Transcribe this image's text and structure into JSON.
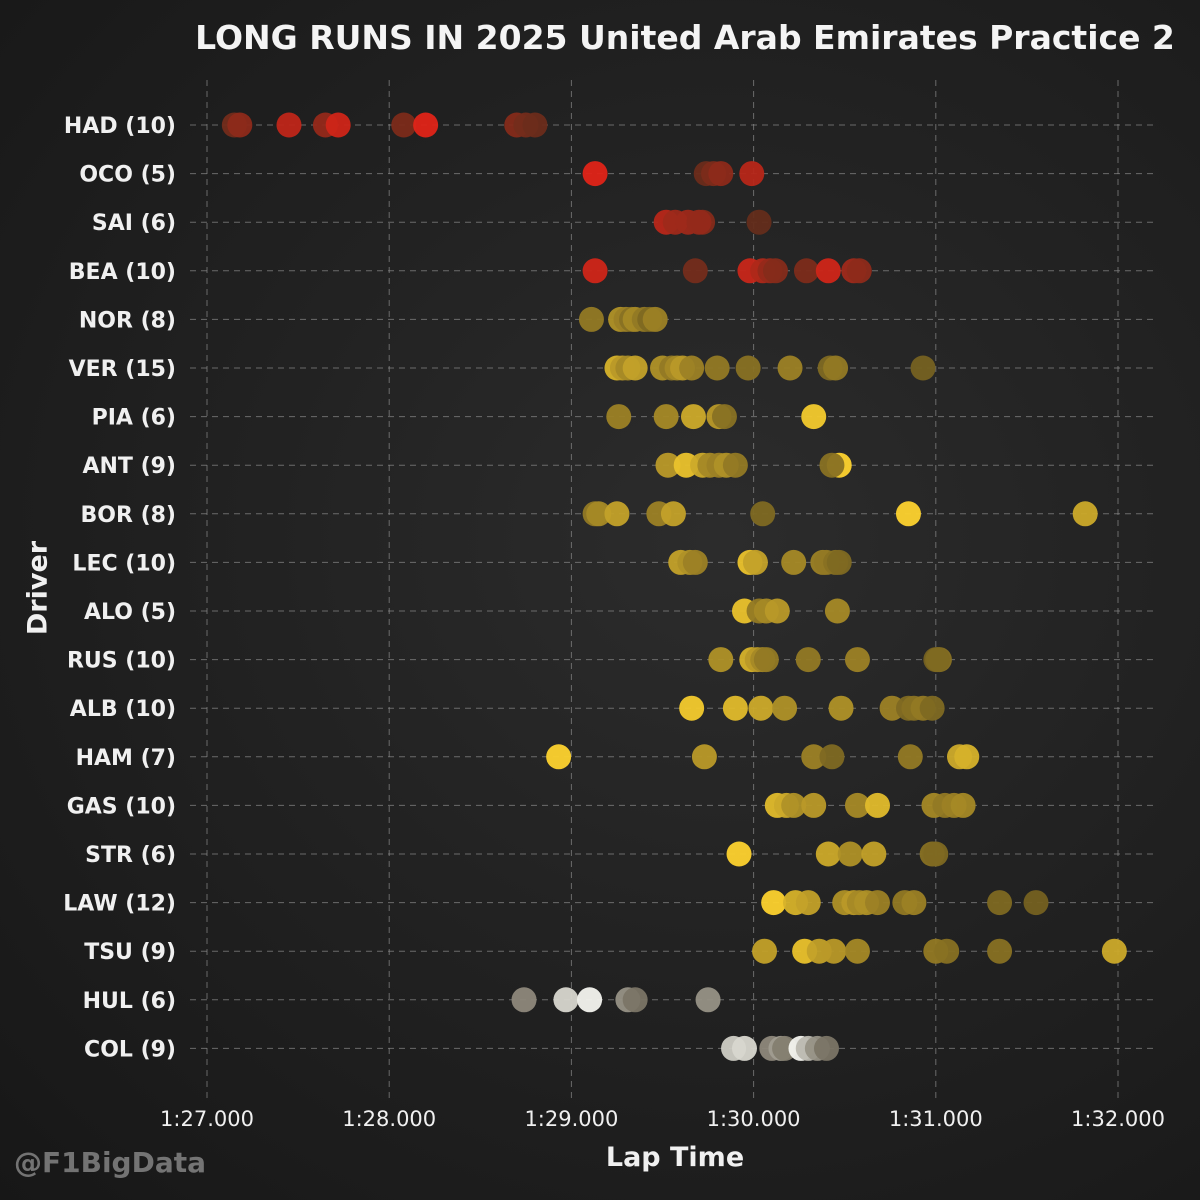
{
  "title": "LONG RUNS IN 2025 United Arab Emirates Practice 2",
  "watermark": "@F1BigData",
  "colors": {
    "red": "#e02418",
    "yellow": "#fdd22e",
    "white": "#f4f4ef"
  },
  "chart_data": {
    "type": "scatter",
    "title": "LONG RUNS IN 2025 United Arab Emirates Practice 2",
    "xlabel": "Lap Time",
    "ylabel": "Driver",
    "xlim": [
      86.85,
      92.2
    ],
    "x_ticks": [
      87,
      88,
      89,
      90,
      91,
      92
    ],
    "x_tick_labels": [
      "1:27.000",
      "1:28.000",
      "1:29.000",
      "1:30.000",
      "1:31.000",
      "1:32.000"
    ],
    "grid": true,
    "series": [
      {
        "label": "HAD (10)",
        "color": "#e02418",
        "laps": [
          {
            "t": 87.15,
            "s": 0.35
          },
          {
            "t": 87.18,
            "s": 0.5
          },
          {
            "t": 87.45,
            "s": 0.8
          },
          {
            "t": 87.65,
            "s": 0.55
          },
          {
            "t": 87.72,
            "s": 0.9
          },
          {
            "t": 88.08,
            "s": 0.4
          },
          {
            "t": 88.2,
            "s": 1.0
          },
          {
            "t": 88.7,
            "s": 0.45
          },
          {
            "t": 88.75,
            "s": 0.35
          },
          {
            "t": 88.8,
            "s": 0.3
          }
        ]
      },
      {
        "label": "OCO (5)",
        "color": "#e02418",
        "laps": [
          {
            "t": 89.13,
            "s": 1.0
          },
          {
            "t": 89.74,
            "s": 0.3
          },
          {
            "t": 89.78,
            "s": 0.4
          },
          {
            "t": 89.82,
            "s": 0.5
          },
          {
            "t": 89.99,
            "s": 0.75
          }
        ]
      },
      {
        "label": "SAI (6)",
        "color": "#e02418",
        "laps": [
          {
            "t": 89.52,
            "s": 0.75
          },
          {
            "t": 89.57,
            "s": 0.6
          },
          {
            "t": 89.64,
            "s": 0.6
          },
          {
            "t": 89.72,
            "s": 0.45
          },
          {
            "t": 89.7,
            "s": 0.55
          },
          {
            "t": 90.03,
            "s": 0.25
          }
        ]
      },
      {
        "label": "BEA (10)",
        "color": "#e02418",
        "laps": [
          {
            "t": 89.13,
            "s": 0.9
          },
          {
            "t": 89.68,
            "s": 0.35
          },
          {
            "t": 89.98,
            "s": 0.85
          },
          {
            "t": 90.05,
            "s": 0.7
          },
          {
            "t": 90.09,
            "s": 0.55
          },
          {
            "t": 90.12,
            "s": 0.45
          },
          {
            "t": 90.29,
            "s": 0.4
          },
          {
            "t": 90.41,
            "s": 0.9
          },
          {
            "t": 90.55,
            "s": 0.6
          },
          {
            "t": 90.58,
            "s": 0.5
          }
        ]
      },
      {
        "label": "NOR (8)",
        "color": "#fdd22e",
        "laps": [
          {
            "t": 89.11,
            "s": 0.45
          },
          {
            "t": 89.27,
            "s": 0.6
          },
          {
            "t": 89.3,
            "s": 0.5
          },
          {
            "t": 89.33,
            "s": 0.4
          },
          {
            "t": 89.35,
            "s": 0.55
          },
          {
            "t": 89.4,
            "s": 0.45
          },
          {
            "t": 89.43,
            "s": 0.35
          },
          {
            "t": 89.46,
            "s": 0.5
          }
        ]
      },
      {
        "label": "VER (15)",
        "color": "#fdd22e",
        "laps": [
          {
            "t": 89.25,
            "s": 0.8
          },
          {
            "t": 89.28,
            "s": 0.65
          },
          {
            "t": 89.31,
            "s": 0.55
          },
          {
            "t": 89.35,
            "s": 0.7
          },
          {
            "t": 89.5,
            "s": 0.6
          },
          {
            "t": 89.55,
            "s": 0.45
          },
          {
            "t": 89.58,
            "s": 0.55
          },
          {
            "t": 89.61,
            "s": 0.65
          },
          {
            "t": 89.66,
            "s": 0.5
          },
          {
            "t": 89.8,
            "s": 0.45
          },
          {
            "t": 89.97,
            "s": 0.4
          },
          {
            "t": 90.2,
            "s": 0.5
          },
          {
            "t": 90.42,
            "s": 0.35
          },
          {
            "t": 90.45,
            "s": 0.45
          },
          {
            "t": 90.93,
            "s": 0.3
          }
        ]
      },
      {
        "label": "PIA (6)",
        "color": "#fdd22e",
        "laps": [
          {
            "t": 89.26,
            "s": 0.5
          },
          {
            "t": 89.52,
            "s": 0.55
          },
          {
            "t": 89.67,
            "s": 0.75
          },
          {
            "t": 89.81,
            "s": 0.65
          },
          {
            "t": 89.84,
            "s": 0.4
          },
          {
            "t": 90.33,
            "s": 0.95
          }
        ]
      },
      {
        "label": "ANT (9)",
        "color": "#fdd22e",
        "laps": [
          {
            "t": 89.53,
            "s": 0.65
          },
          {
            "t": 89.63,
            "s": 0.9
          },
          {
            "t": 89.72,
            "s": 0.75
          },
          {
            "t": 89.76,
            "s": 0.55
          },
          {
            "t": 89.81,
            "s": 0.5
          },
          {
            "t": 89.85,
            "s": 0.6
          },
          {
            "t": 89.9,
            "s": 0.45
          },
          {
            "t": 90.47,
            "s": 1.0
          },
          {
            "t": 90.43,
            "s": 0.4
          }
        ]
      },
      {
        "label": "BOR (8)",
        "color": "#fdd22e",
        "laps": [
          {
            "t": 89.13,
            "s": 0.45
          },
          {
            "t": 89.15,
            "s": 0.55
          },
          {
            "t": 89.25,
            "s": 0.7
          },
          {
            "t": 89.48,
            "s": 0.5
          },
          {
            "t": 89.56,
            "s": 0.7
          },
          {
            "t": 90.05,
            "s": 0.35
          },
          {
            "t": 90.85,
            "s": 1.0
          },
          {
            "t": 91.82,
            "s": 0.75
          }
        ]
      },
      {
        "label": "LEC (10)",
        "color": "#fdd22e",
        "laps": [
          {
            "t": 89.6,
            "s": 0.7
          },
          {
            "t": 89.65,
            "s": 0.6
          },
          {
            "t": 89.68,
            "s": 0.5
          },
          {
            "t": 89.98,
            "s": 0.9
          },
          {
            "t": 90.01,
            "s": 0.7
          },
          {
            "t": 90.22,
            "s": 0.55
          },
          {
            "t": 90.38,
            "s": 0.5
          },
          {
            "t": 90.4,
            "s": 0.45
          },
          {
            "t": 90.45,
            "s": 0.4
          },
          {
            "t": 90.47,
            "s": 0.35
          }
        ]
      },
      {
        "label": "ALO (5)",
        "color": "#fdd22e",
        "laps": [
          {
            "t": 89.95,
            "s": 0.9
          },
          {
            "t": 90.03,
            "s": 0.45
          },
          {
            "t": 90.07,
            "s": 0.55
          },
          {
            "t": 90.13,
            "s": 0.65
          },
          {
            "t": 90.46,
            "s": 0.55
          }
        ]
      },
      {
        "label": "RUS (10)",
        "color": "#fdd22e",
        "laps": [
          {
            "t": 89.82,
            "s": 0.6
          },
          {
            "t": 89.99,
            "s": 0.8
          },
          {
            "t": 90.02,
            "s": 0.65
          },
          {
            "t": 90.05,
            "s": 0.55
          },
          {
            "t": 90.07,
            "s": 0.45
          },
          {
            "t": 90.3,
            "s": 0.45
          },
          {
            "t": 90.57,
            "s": 0.5
          },
          {
            "t": 91.0,
            "s": 0.3
          },
          {
            "t": 91.02,
            "s": 0.4
          },
          {
            "t": 91.01,
            "s": 0.35
          }
        ]
      },
      {
        "label": "ALB (10)",
        "color": "#fdd22e",
        "laps": [
          {
            "t": 89.66,
            "s": 0.95
          },
          {
            "t": 89.9,
            "s": 0.85
          },
          {
            "t": 90.04,
            "s": 0.75
          },
          {
            "t": 90.17,
            "s": 0.6
          },
          {
            "t": 90.48,
            "s": 0.6
          },
          {
            "t": 90.76,
            "s": 0.5
          },
          {
            "t": 90.85,
            "s": 0.35
          },
          {
            "t": 90.88,
            "s": 0.4
          },
          {
            "t": 90.93,
            "s": 0.45
          },
          {
            "t": 90.98,
            "s": 0.35
          }
        ]
      },
      {
        "label": "HAM (7)",
        "color": "#fdd22e",
        "laps": [
          {
            "t": 88.93,
            "s": 1.0
          },
          {
            "t": 89.73,
            "s": 0.65
          },
          {
            "t": 90.33,
            "s": 0.5
          },
          {
            "t": 90.43,
            "s": 0.35
          },
          {
            "t": 90.86,
            "s": 0.45
          },
          {
            "t": 91.13,
            "s": 0.75
          },
          {
            "t": 91.17,
            "s": 0.8
          }
        ]
      },
      {
        "label": "GAS (10)",
        "color": "#fdd22e",
        "laps": [
          {
            "t": 90.13,
            "s": 0.85
          },
          {
            "t": 90.18,
            "s": 0.75
          },
          {
            "t": 90.22,
            "s": 0.6
          },
          {
            "t": 90.33,
            "s": 0.65
          },
          {
            "t": 90.57,
            "s": 0.55
          },
          {
            "t": 90.68,
            "s": 0.85
          },
          {
            "t": 90.99,
            "s": 0.55
          },
          {
            "t": 91.05,
            "s": 0.45
          },
          {
            "t": 91.1,
            "s": 0.5
          },
          {
            "t": 91.15,
            "s": 0.55
          }
        ]
      },
      {
        "label": "STR (6)",
        "color": "#fdd22e",
        "laps": [
          {
            "t": 89.92,
            "s": 1.0
          },
          {
            "t": 90.41,
            "s": 0.75
          },
          {
            "t": 90.53,
            "s": 0.6
          },
          {
            "t": 90.66,
            "s": 0.7
          },
          {
            "t": 90.98,
            "s": 0.4
          },
          {
            "t": 91.0,
            "s": 0.35
          }
        ]
      },
      {
        "label": "LAW (12)",
        "color": "#fdd22e",
        "laps": [
          {
            "t": 90.11,
            "s": 1.0
          },
          {
            "t": 90.23,
            "s": 0.8
          },
          {
            "t": 90.3,
            "s": 0.7
          },
          {
            "t": 90.5,
            "s": 0.6
          },
          {
            "t": 90.55,
            "s": 0.65
          },
          {
            "t": 90.58,
            "s": 0.55
          },
          {
            "t": 90.62,
            "s": 0.6
          },
          {
            "t": 90.68,
            "s": 0.5
          },
          {
            "t": 90.83,
            "s": 0.45
          },
          {
            "t": 90.88,
            "s": 0.5
          },
          {
            "t": 91.35,
            "s": 0.35
          },
          {
            "t": 91.55,
            "s": 0.3
          }
        ]
      },
      {
        "label": "TSU (9)",
        "color": "#fdd22e",
        "laps": [
          {
            "t": 90.06,
            "s": 0.7
          },
          {
            "t": 90.28,
            "s": 0.9
          },
          {
            "t": 90.36,
            "s": 0.7
          },
          {
            "t": 90.44,
            "s": 0.65
          },
          {
            "t": 90.57,
            "s": 0.55
          },
          {
            "t": 91.0,
            "s": 0.45
          },
          {
            "t": 91.06,
            "s": 0.4
          },
          {
            "t": 91.35,
            "s": 0.4
          },
          {
            "t": 91.98,
            "s": 0.75
          }
        ]
      },
      {
        "label": "HUL (6)",
        "color": "#f4f4ef",
        "laps": [
          {
            "t": 88.74,
            "s": 0.45
          },
          {
            "t": 88.97,
            "s": 0.85
          },
          {
            "t": 89.1,
            "s": 1.0
          },
          {
            "t": 89.31,
            "s": 0.5
          },
          {
            "t": 89.35,
            "s": 0.35
          },
          {
            "t": 89.75,
            "s": 0.5
          }
        ]
      },
      {
        "label": "COL (9)",
        "color": "#f4f4ef",
        "laps": [
          {
            "t": 89.89,
            "s": 0.8
          },
          {
            "t": 89.95,
            "s": 0.85
          },
          {
            "t": 90.1,
            "s": 0.45
          },
          {
            "t": 90.15,
            "s": 0.55
          },
          {
            "t": 90.17,
            "s": 0.4
          },
          {
            "t": 90.26,
            "s": 1.0
          },
          {
            "t": 90.3,
            "s": 0.7
          },
          {
            "t": 90.35,
            "s": 0.5
          },
          {
            "t": 90.4,
            "s": 0.35
          }
        ]
      }
    ]
  }
}
